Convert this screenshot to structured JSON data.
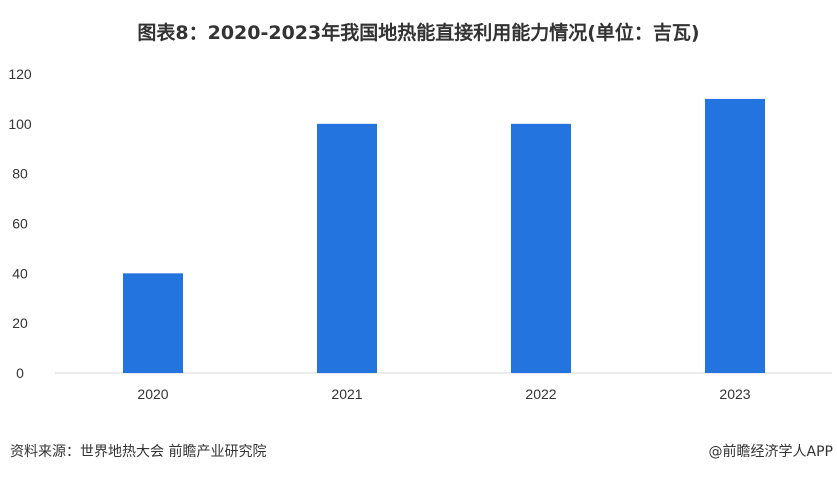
{
  "chart_data": {
    "type": "bar",
    "title": "图表8：2020-2023年我国地热能直接利用能力情况(单位：吉瓦)",
    "categories": [
      "2020",
      "2021",
      "2022",
      "2023"
    ],
    "values": [
      40,
      100,
      100,
      110
    ],
    "yticks": [
      0,
      20,
      40,
      60,
      80,
      100,
      120
    ],
    "ylim": [
      0,
      120
    ],
    "xlabel": "",
    "ylabel": "",
    "grid": false,
    "bar_color": "#2474e0"
  },
  "footer": {
    "source": "资料来源：世界地热大会 前瞻产业研究院",
    "brand": "@前瞻经济学人APP"
  }
}
